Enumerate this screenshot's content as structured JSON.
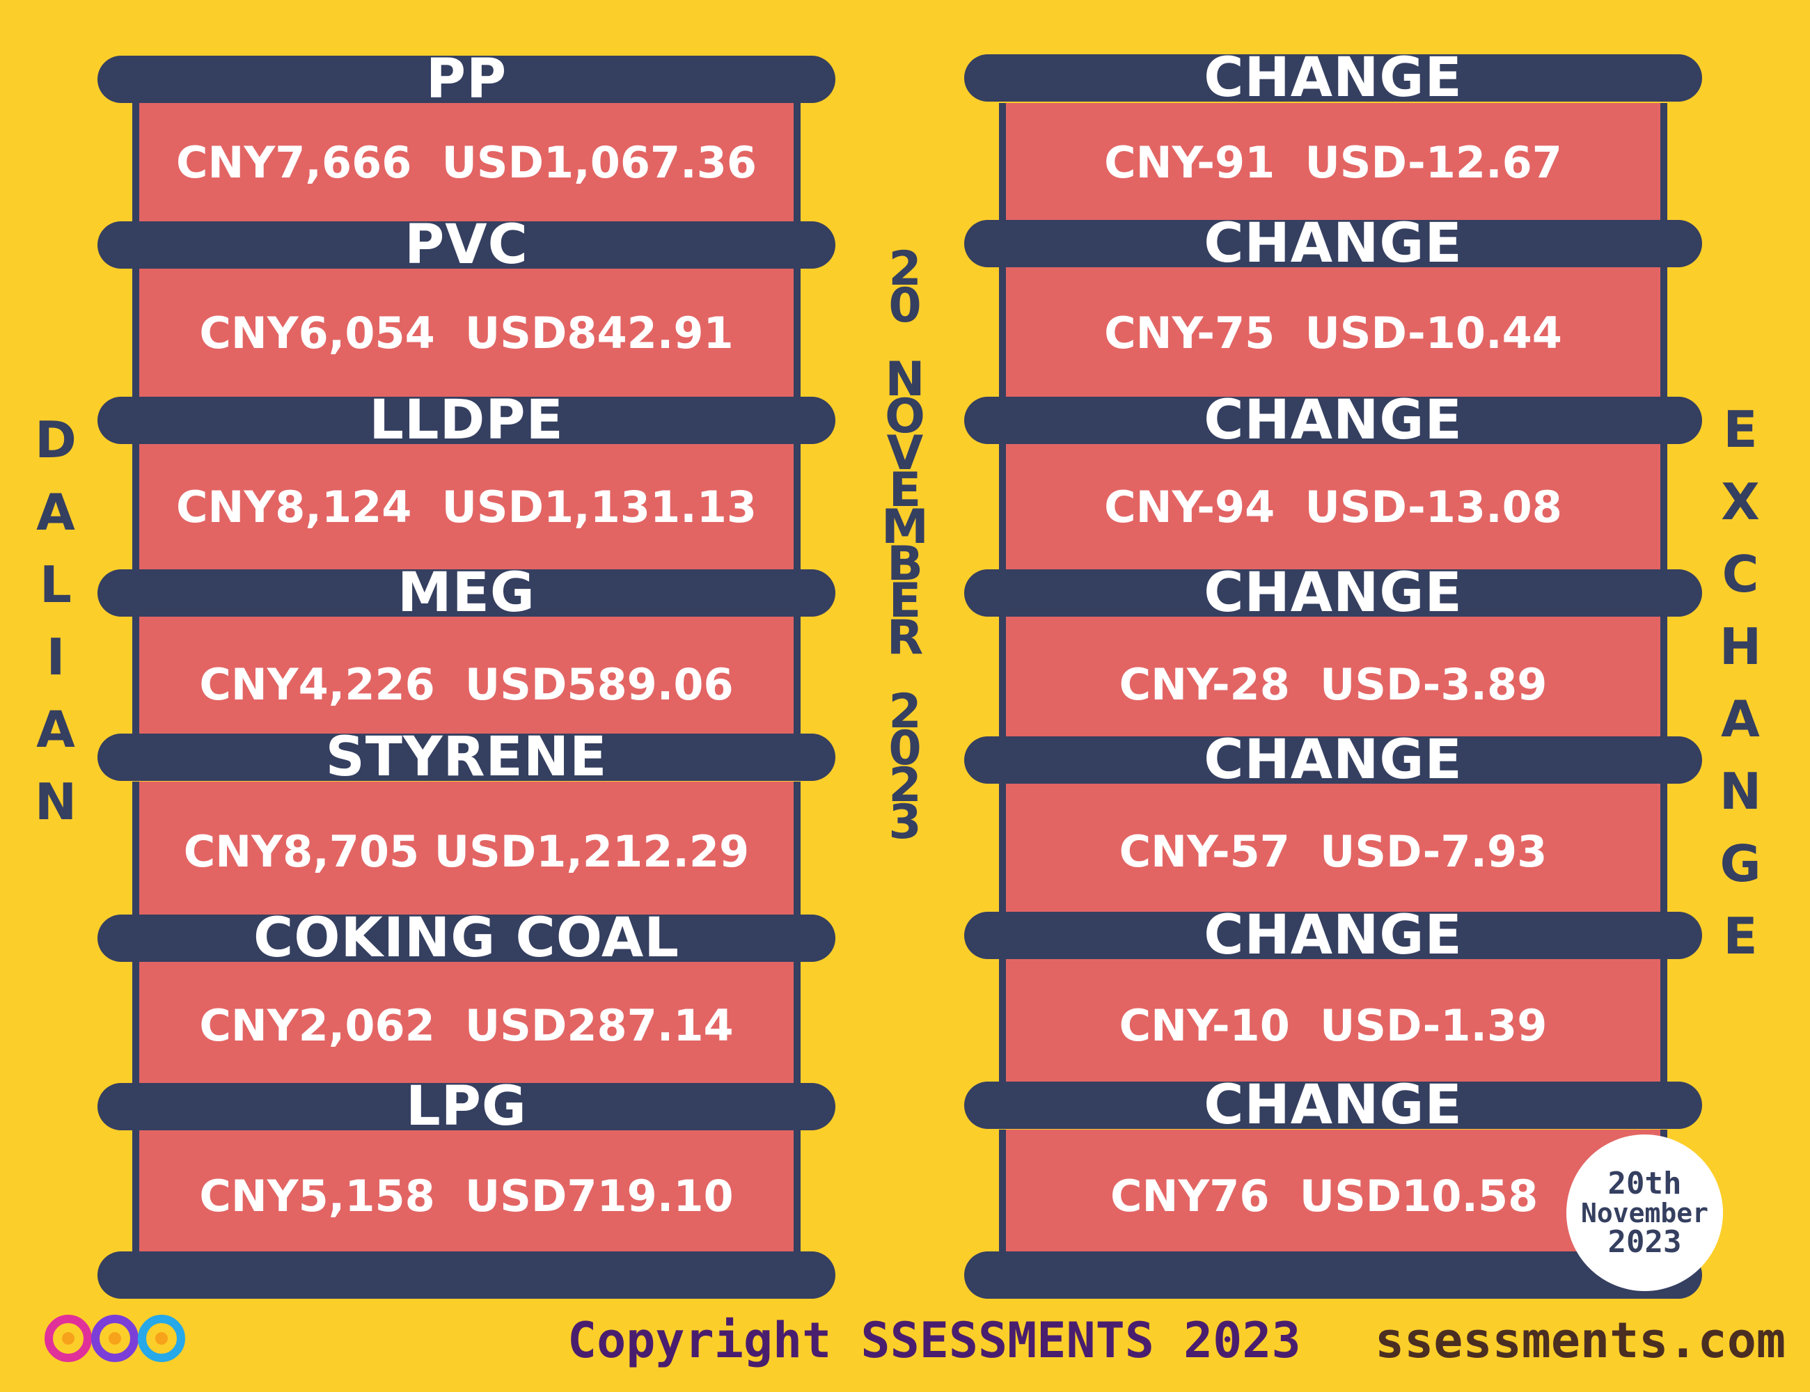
{
  "side_left": [
    "D",
    "A",
    "L",
    "I",
    "A",
    "N"
  ],
  "side_right": [
    "E",
    "X",
    "C",
    "H",
    "A",
    "N",
    "G",
    "E"
  ],
  "center_date": [
    "2",
    "0",
    "",
    "N",
    "O",
    "V",
    "E",
    "M",
    "B",
    "E",
    "R",
    "",
    "2",
    "0",
    "2",
    "3"
  ],
  "left": [
    {
      "name": "PP",
      "value": "CNY7,666  USD1,067.36"
    },
    {
      "name": "PVC",
      "value": "CNY6,054  USD842.91"
    },
    {
      "name": "LLDPE",
      "value": "CNY8,124  USD1,131.13"
    },
    {
      "name": "MEG",
      "value": "CNY4,226  USD589.06"
    },
    {
      "name": "STYRENE",
      "value": "CNY8,705 USD1,212.29"
    },
    {
      "name": "COKING COAL",
      "value": "CNY2,062  USD287.14"
    },
    {
      "name": "LPG",
      "value": "CNY5,158  USD719.10"
    }
  ],
  "right": [
    {
      "name": "CHANGE",
      "value": "CNY-91  USD-12.67"
    },
    {
      "name": "CHANGE",
      "value": "CNY-75  USD-10.44"
    },
    {
      "name": "CHANGE",
      "value": "CNY-94  USD-13.08"
    },
    {
      "name": "CHANGE",
      "value": "CNY-28  USD-3.89"
    },
    {
      "name": "CHANGE",
      "value": "CNY-57  USD-7.93"
    },
    {
      "name": "CHANGE",
      "value": "CNY-10  USD-1.39"
    },
    {
      "name": "CHANGE",
      "value": "CNY76  USD10.58"
    }
  ],
  "badge": {
    "line1": "20th",
    "line2": "November",
    "line3": "2023"
  },
  "footer": {
    "copyright": "Copyright SSESSMENTS 2023",
    "site": "ssessments.com"
  },
  "colors": {
    "background": "#FCCE2A",
    "bar": "#353F60",
    "panel": "#E26564"
  }
}
